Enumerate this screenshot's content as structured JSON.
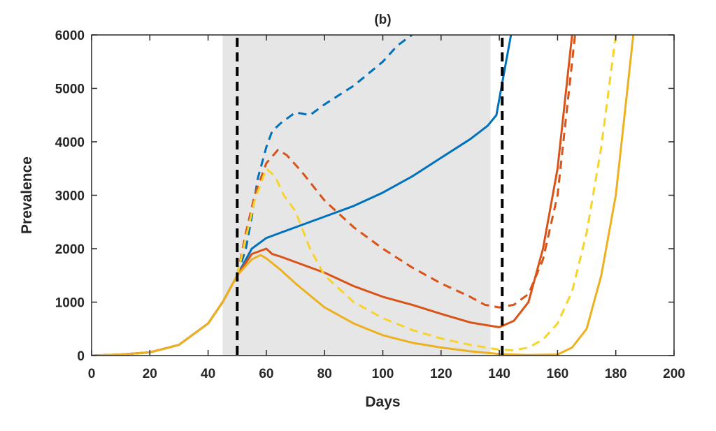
{
  "chart_data": {
    "type": "line",
    "title": "(b)",
    "xlabel": "Days",
    "ylabel": "Prevalence",
    "xlim": [
      0,
      200
    ],
    "ylim": [
      0,
      6000
    ],
    "xticks": [
      0,
      20,
      40,
      60,
      80,
      100,
      120,
      140,
      160,
      180,
      200
    ],
    "yticks": [
      0,
      1000,
      2000,
      3000,
      4000,
      5000,
      6000
    ],
    "grid": false,
    "legend": "none",
    "shaded_region": {
      "x": [
        45,
        137
      ],
      "color": "#e6e6e6"
    },
    "vertical_lines": [
      {
        "x": 50,
        "color": "#000000",
        "style": "dashed"
      },
      {
        "x": 141,
        "color": "#000000",
        "style": "dashed"
      }
    ],
    "series": [
      {
        "color": "#0072bd",
        "style": "solid",
        "points": [
          [
            0,
            0
          ],
          [
            10,
            20
          ],
          [
            20,
            60
          ],
          [
            30,
            200
          ],
          [
            40,
            600
          ],
          [
            45,
            1000
          ],
          [
            50,
            1500
          ],
          [
            55,
            2000
          ],
          [
            60,
            2200
          ],
          [
            65,
            2300
          ],
          [
            70,
            2400
          ],
          [
            80,
            2600
          ],
          [
            90,
            2800
          ],
          [
            100,
            3050
          ],
          [
            110,
            3350
          ],
          [
            120,
            3700
          ],
          [
            130,
            4050
          ],
          [
            136,
            4300
          ],
          [
            139,
            4500
          ],
          [
            142,
            5400
          ],
          [
            144,
            6000
          ]
        ]
      },
      {
        "color": "#0072bd",
        "style": "dashed",
        "points": [
          [
            50,
            1500
          ],
          [
            53,
            2000
          ],
          [
            55,
            2600
          ],
          [
            57,
            3300
          ],
          [
            60,
            3900
          ],
          [
            62,
            4200
          ],
          [
            65,
            4350
          ],
          [
            70,
            4550
          ],
          [
            75,
            4500
          ],
          [
            80,
            4700
          ],
          [
            90,
            5050
          ],
          [
            100,
            5500
          ],
          [
            105,
            5800
          ],
          [
            110,
            6000
          ]
        ]
      },
      {
        "color": "#d95319",
        "style": "solid",
        "points": [
          [
            0,
            0
          ],
          [
            10,
            20
          ],
          [
            20,
            60
          ],
          [
            30,
            200
          ],
          [
            40,
            600
          ],
          [
            45,
            1000
          ],
          [
            50,
            1500
          ],
          [
            55,
            1900
          ],
          [
            60,
            2000
          ],
          [
            62,
            1900
          ],
          [
            65,
            1850
          ],
          [
            70,
            1750
          ],
          [
            80,
            1550
          ],
          [
            90,
            1300
          ],
          [
            100,
            1100
          ],
          [
            110,
            950
          ],
          [
            120,
            780
          ],
          [
            130,
            620
          ],
          [
            140,
            530
          ],
          [
            145,
            650
          ],
          [
            150,
            1000
          ],
          [
            155,
            2000
          ],
          [
            160,
            3500
          ],
          [
            163,
            5000
          ],
          [
            165,
            6000
          ]
        ]
      },
      {
        "color": "#d95319",
        "style": "dashed",
        "points": [
          [
            50,
            1500
          ],
          [
            53,
            2300
          ],
          [
            56,
            3000
          ],
          [
            60,
            3600
          ],
          [
            64,
            3850
          ],
          [
            67,
            3750
          ],
          [
            72,
            3450
          ],
          [
            80,
            2900
          ],
          [
            90,
            2400
          ],
          [
            100,
            2000
          ],
          [
            110,
            1650
          ],
          [
            120,
            1350
          ],
          [
            130,
            1100
          ],
          [
            135,
            950
          ],
          [
            140,
            900
          ],
          [
            145,
            950
          ],
          [
            150,
            1150
          ],
          [
            155,
            1800
          ],
          [
            160,
            3000
          ],
          [
            164,
            5000
          ],
          [
            166,
            6000
          ]
        ]
      },
      {
        "color": "#edb120",
        "style": "solid",
        "points": [
          [
            0,
            0
          ],
          [
            10,
            20
          ],
          [
            20,
            60
          ],
          [
            30,
            200
          ],
          [
            40,
            600
          ],
          [
            45,
            1000
          ],
          [
            50,
            1500
          ],
          [
            55,
            1800
          ],
          [
            58,
            1880
          ],
          [
            60,
            1820
          ],
          [
            65,
            1600
          ],
          [
            70,
            1350
          ],
          [
            80,
            900
          ],
          [
            90,
            600
          ],
          [
            100,
            380
          ],
          [
            110,
            240
          ],
          [
            120,
            150
          ],
          [
            130,
            80
          ],
          [
            140,
            30
          ],
          [
            150,
            10
          ],
          [
            160,
            20
          ],
          [
            165,
            150
          ],
          [
            170,
            500
          ],
          [
            175,
            1500
          ],
          [
            180,
            3000
          ],
          [
            184,
            5000
          ],
          [
            186,
            6000
          ]
        ]
      },
      {
        "color": "#f7d42a",
        "style": "dashed",
        "points": [
          [
            50,
            1500
          ],
          [
            53,
            2200
          ],
          [
            56,
            2900
          ],
          [
            60,
            3500
          ],
          [
            63,
            3350
          ],
          [
            66,
            3000
          ],
          [
            70,
            2700
          ],
          [
            75,
            2000
          ],
          [
            80,
            1500
          ],
          [
            90,
            1000
          ],
          [
            100,
            700
          ],
          [
            110,
            480
          ],
          [
            120,
            320
          ],
          [
            130,
            200
          ],
          [
            140,
            110
          ],
          [
            145,
            100
          ],
          [
            150,
            150
          ],
          [
            155,
            300
          ],
          [
            160,
            600
          ],
          [
            165,
            1200
          ],
          [
            170,
            2300
          ],
          [
            175,
            3900
          ],
          [
            180,
            6000
          ]
        ]
      }
    ]
  }
}
